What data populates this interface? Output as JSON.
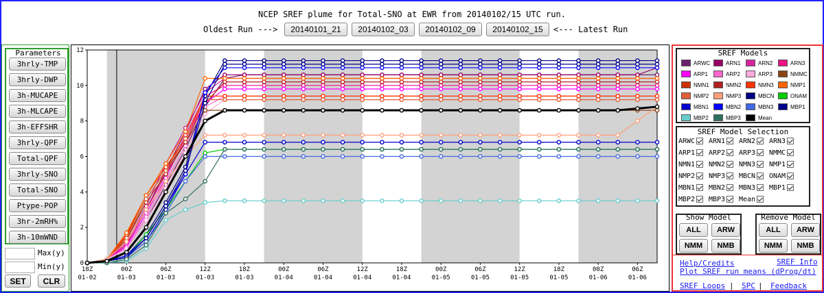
{
  "header": {
    "title": "NCEP SREF plume for Total-SNO at EWR from 20140102/15 UTC run.",
    "oldest_label": "Oldest Run --->",
    "latest_label": "<--- Latest Run",
    "runs": [
      "20140101_21",
      "20140102_03",
      "20140102_09",
      "20140102_15"
    ]
  },
  "params": {
    "legend": "Parameters",
    "buttons": [
      "3hrly-TMP",
      "3hrly-DWP",
      "3h-MUCAPE",
      "3h-MLCAPE",
      "3h-EFFSHR",
      "3hrly-QPF",
      "Total-QPF",
      "3hrly-SNO",
      "Total-SNO",
      "Ptype-POP",
      "3hr-2mRH%",
      "3h-10mWND"
    ],
    "max_label": "Max(y)",
    "min_label": "Min(y)",
    "set_label": "SET",
    "clr_label": "CLR"
  },
  "legend": {
    "title": "SREF Models",
    "models": [
      {
        "name": "ARWC",
        "color": "#6b1f6b"
      },
      {
        "name": "ARN1",
        "color": "#990066"
      },
      {
        "name": "ARN2",
        "color": "#d6249f"
      },
      {
        "name": "ARN3",
        "color": "#ee1188"
      },
      {
        "name": "ARP1",
        "color": "#ff00ff"
      },
      {
        "name": "ARP2",
        "color": "#ff66cc"
      },
      {
        "name": "ARP3",
        "color": "#ffaadd"
      },
      {
        "name": "NMMC",
        "color": "#8b4513"
      },
      {
        "name": "NMN1",
        "color": "#cc3300"
      },
      {
        "name": "NMN2",
        "color": "#b22222"
      },
      {
        "name": "NMN3",
        "color": "#ff3300"
      },
      {
        "name": "NMP1",
        "color": "#ff6600"
      },
      {
        "name": "NMP2",
        "color": "#e2603a"
      },
      {
        "name": "NMP3",
        "color": "#ffa07a"
      },
      {
        "name": "MBCN",
        "color": "#000080"
      },
      {
        "name": "ONAM",
        "color": "#00cc00"
      },
      {
        "name": "MBN1",
        "color": "#0000cd"
      },
      {
        "name": "MBN2",
        "color": "#0000ff"
      },
      {
        "name": "MBN3",
        "color": "#4169e1"
      },
      {
        "name": "MBP1",
        "color": "#00008b"
      },
      {
        "name": "MBP2",
        "color": "#66cccc"
      },
      {
        "name": "MBP3",
        "color": "#2f6f5f"
      },
      {
        "name": "Mean",
        "color": "#000000"
      }
    ]
  },
  "selection": {
    "title": "SREF Model Selection",
    "rows": [
      [
        "ARWC",
        "ARN1",
        "ARN2",
        "ARN3"
      ],
      [
        "ARP1",
        "ARP2",
        "ARP3",
        "NMMC"
      ],
      [
        "NMN1",
        "NMN2",
        "NMN3",
        "NMP1"
      ],
      [
        "NMP2",
        "NMP3",
        "MBCN",
        "ONAM"
      ],
      [
        "MBN1",
        "MBN2",
        "MBN3",
        "MBP1"
      ],
      [
        "MBP2",
        "MBP3",
        "Mean"
      ]
    ]
  },
  "show_model": {
    "title": "Show Model",
    "buttons": [
      "ALL",
      "ARW",
      "NMM",
      "NMB"
    ]
  },
  "remove_model": {
    "title": "Remove Model",
    "buttons": [
      "ALL",
      "ARW",
      "NMM",
      "NMB"
    ]
  },
  "links": {
    "help": "Help/Credits",
    "info": "SREF Info",
    "dprog": "Plot SREF run means (dProg/dt)",
    "loops": "SREF Loops",
    "spc": "SPC",
    "feedback": "Feedback",
    "sep": "|"
  },
  "chart_data": {
    "type": "line",
    "title": "",
    "xlabel": "",
    "ylabel": "",
    "ylim": [
      0,
      12
    ],
    "yticks": [
      0,
      2,
      4,
      6,
      8,
      10,
      12
    ],
    "x_index_range": [
      0,
      29
    ],
    "x_tick_labels": [
      {
        "hour": "18Z",
        "date": "01-02"
      },
      {
        "hour": "00Z",
        "date": "01-03"
      },
      {
        "hour": "06Z",
        "date": "01-03"
      },
      {
        "hour": "12Z",
        "date": "01-03"
      },
      {
        "hour": "18Z",
        "date": "01-03"
      },
      {
        "hour": "00Z",
        "date": "01-04"
      },
      {
        "hour": "06Z",
        "date": "01-04"
      },
      {
        "hour": "12Z",
        "date": "01-04"
      },
      {
        "hour": "18Z",
        "date": "01-04"
      },
      {
        "hour": "00Z",
        "date": "01-05"
      },
      {
        "hour": "06Z",
        "date": "01-05"
      },
      {
        "hour": "12Z",
        "date": "01-05"
      },
      {
        "hour": "18Z",
        "date": "01-05"
      },
      {
        "hour": "00Z",
        "date": "01-06"
      },
      {
        "hour": "06Z",
        "date": "01-06"
      }
    ],
    "shaded_bands": [
      [
        1,
        6
      ],
      [
        9,
        14
      ],
      [
        17,
        22
      ],
      [
        25,
        29
      ]
    ],
    "run_marker_index": 1.5,
    "series": [
      {
        "name": "ARWC",
        "color": "#6b1f6b",
        "values": [
          0,
          0.2,
          0.8,
          2.4,
          4.4,
          6.4,
          8.8,
          10.4,
          10.6,
          10.6,
          10.6,
          10.6,
          10.6,
          10.6,
          10.6,
          10.6,
          10.6,
          10.6,
          10.6,
          10.6,
          10.6,
          10.6,
          10.6,
          10.6,
          10.6,
          10.6,
          10.6,
          10.6,
          10.6,
          10.6
        ]
      },
      {
        "name": "ARN1",
        "color": "#990066",
        "values": [
          0,
          0.2,
          1.0,
          3.0,
          5.2,
          7.4,
          9.8,
          10.6,
          10.6,
          10.6,
          10.6,
          10.6,
          10.6,
          10.6,
          10.6,
          10.6,
          10.6,
          10.6,
          10.6,
          10.6,
          10.6,
          10.6,
          10.6,
          10.6,
          10.6,
          10.6,
          10.6,
          10.6,
          10.6,
          11.0
        ]
      },
      {
        "name": "ARN2",
        "color": "#d6249f",
        "values": [
          0,
          0.2,
          1.1,
          3.2,
          5.6,
          7.6,
          9.6,
          10.4,
          10.4,
          10.4,
          10.4,
          10.4,
          10.4,
          10.4,
          10.4,
          10.4,
          10.4,
          10.4,
          10.4,
          10.4,
          10.4,
          10.4,
          10.4,
          10.4,
          10.4,
          10.4,
          10.4,
          10.4,
          10.4,
          10.4
        ]
      },
      {
        "name": "ARN3",
        "color": "#ee1188",
        "values": [
          0,
          0.2,
          1.0,
          3.0,
          5.0,
          7.2,
          9.4,
          10.0,
          10.0,
          10.0,
          10.0,
          10.0,
          10.0,
          10.0,
          10.0,
          10.0,
          10.0,
          10.0,
          10.0,
          10.0,
          10.0,
          10.0,
          10.0,
          10.0,
          10.0,
          10.0,
          10.0,
          10.0,
          10.0,
          10.0
        ]
      },
      {
        "name": "ARP1",
        "color": "#ff00ff",
        "values": [
          0,
          0.2,
          0.9,
          2.8,
          4.8,
          7.0,
          9.0,
          9.8,
          9.8,
          9.8,
          9.8,
          9.8,
          9.8,
          9.8,
          9.8,
          9.8,
          9.8,
          9.8,
          9.8,
          9.8,
          9.8,
          9.8,
          9.8,
          9.8,
          9.8,
          9.8,
          9.8,
          9.8,
          9.8,
          9.8
        ]
      },
      {
        "name": "ARP2",
        "color": "#ff66cc",
        "values": [
          0,
          0.2,
          0.8,
          2.6,
          4.6,
          6.6,
          8.8,
          9.4,
          9.4,
          9.4,
          9.4,
          9.4,
          9.4,
          9.4,
          9.4,
          9.4,
          9.4,
          9.4,
          9.4,
          9.4,
          9.4,
          9.4,
          9.4,
          9.4,
          9.4,
          9.4,
          9.4,
          9.4,
          9.4,
          9.4
        ]
      },
      {
        "name": "ARP3",
        "color": "#ffaadd",
        "values": [
          0,
          0.2,
          0.8,
          2.4,
          4.2,
          6.2,
          8.4,
          9.2,
          9.2,
          9.2,
          9.2,
          9.2,
          9.2,
          9.2,
          9.2,
          9.2,
          9.2,
          9.2,
          9.2,
          9.2,
          9.2,
          9.2,
          9.2,
          9.2,
          9.2,
          9.2,
          9.2,
          9.2,
          9.2,
          9.2
        ]
      },
      {
        "name": "NMMC",
        "color": "#8b4513",
        "values": [
          0,
          0.2,
          1.3,
          3.6,
          5.2,
          6.8,
          8.6,
          8.6,
          8.6,
          8.6,
          8.6,
          8.6,
          8.6,
          8.6,
          8.6,
          8.6,
          8.6,
          8.6,
          8.6,
          8.6,
          8.6,
          8.6,
          8.6,
          8.6,
          8.6,
          8.6,
          8.6,
          8.6,
          8.6,
          8.6
        ]
      },
      {
        "name": "NMN1",
        "color": "#cc3300",
        "values": [
          0,
          0.2,
          1.5,
          3.8,
          5.4,
          7.0,
          9.2,
          9.2,
          9.2,
          9.2,
          9.2,
          9.2,
          9.2,
          9.2,
          9.2,
          9.2,
          9.2,
          9.2,
          9.2,
          9.2,
          9.2,
          9.2,
          9.2,
          9.2,
          9.2,
          9.2,
          9.2,
          9.2,
          9.2,
          9.2
        ]
      },
      {
        "name": "NMN2",
        "color": "#b22222",
        "values": [
          0,
          0.2,
          1.3,
          3.4,
          5.0,
          6.8,
          9.0,
          10.2,
          10.2,
          10.2,
          10.2,
          10.2,
          10.2,
          10.2,
          10.2,
          10.2,
          10.2,
          10.2,
          10.2,
          10.2,
          10.2,
          10.2,
          10.2,
          10.2,
          10.2,
          10.2,
          10.2,
          10.2,
          10.2,
          10.2
        ]
      },
      {
        "name": "NMN3",
        "color": "#ff3300",
        "values": [
          0,
          0.2,
          1.6,
          3.8,
          5.4,
          7.0,
          9.4,
          9.4,
          9.4,
          9.4,
          9.4,
          9.4,
          9.4,
          9.4,
          9.4,
          9.4,
          9.4,
          9.4,
          9.4,
          9.4,
          9.4,
          9.4,
          9.4,
          9.4,
          9.4,
          9.4,
          9.4,
          9.4,
          9.4,
          9.4
        ]
      },
      {
        "name": "NMP1",
        "color": "#ff6600",
        "values": [
          0,
          0.2,
          1.7,
          3.8,
          5.6,
          7.4,
          10.4,
          10.4,
          10.4,
          10.4,
          10.4,
          10.4,
          10.4,
          10.4,
          10.4,
          10.4,
          10.4,
          10.4,
          10.4,
          10.4,
          10.4,
          10.4,
          10.4,
          10.4,
          10.4,
          10.4,
          10.4,
          10.4,
          10.4,
          10.4
        ]
      },
      {
        "name": "NMP2",
        "color": "#e2603a",
        "values": [
          0,
          0.2,
          1.4,
          3.6,
          5.2,
          7.0,
          9.2,
          9.2,
          9.2,
          9.2,
          9.2,
          9.2,
          9.2,
          9.2,
          9.2,
          9.2,
          9.2,
          9.2,
          9.2,
          9.2,
          9.2,
          9.2,
          9.2,
          9.2,
          9.2,
          9.2,
          9.2,
          9.2,
          9.2,
          9.2
        ]
      },
      {
        "name": "NMP3",
        "color": "#ffa07a",
        "values": [
          0,
          0.2,
          1.2,
          3.0,
          4.6,
          6.0,
          7.2,
          7.2,
          7.2,
          7.2,
          7.2,
          7.2,
          7.2,
          7.2,
          7.2,
          7.2,
          7.2,
          7.2,
          7.2,
          7.2,
          7.2,
          7.2,
          7.2,
          7.2,
          7.2,
          7.2,
          7.2,
          7.2,
          8.0,
          8.8
        ]
      },
      {
        "name": "MBCN",
        "color": "#000080",
        "values": [
          0,
          0.1,
          0.4,
          1.6,
          3.4,
          5.4,
          9.4,
          11.4,
          11.4,
          11.4,
          11.4,
          11.4,
          11.4,
          11.4,
          11.4,
          11.4,
          11.4,
          11.4,
          11.4,
          11.4,
          11.4,
          11.4,
          11.4,
          11.4,
          11.4,
          11.4,
          11.4,
          11.4,
          11.4,
          11.4
        ]
      },
      {
        "name": "ONAM",
        "color": "#00cc00",
        "values": [
          0,
          0.1,
          0.3,
          1.6,
          3.0,
          4.6,
          6.2,
          6.4,
          6.4,
          6.4,
          6.4,
          6.4,
          6.4,
          6.4,
          6.4,
          6.4,
          6.4,
          6.4,
          6.4,
          6.4,
          6.4,
          6.4,
          6.4,
          6.4,
          6.4,
          6.4,
          6.4,
          6.4,
          6.4,
          6.4
        ]
      },
      {
        "name": "MBN1",
        "color": "#0000cd",
        "values": [
          0,
          0.1,
          0.3,
          1.2,
          3.0,
          5.0,
          6.8,
          6.8,
          6.8,
          6.8,
          6.8,
          6.8,
          6.8,
          6.8,
          6.8,
          6.8,
          6.8,
          6.8,
          6.8,
          6.8,
          6.8,
          6.8,
          6.8,
          6.8,
          6.8,
          6.8,
          6.8,
          6.8,
          6.8,
          6.8
        ]
      },
      {
        "name": "MBN2",
        "color": "#0000ff",
        "values": [
          0,
          0.1,
          0.4,
          1.4,
          3.2,
          5.0,
          9.6,
          11.0,
          11.0,
          11.0,
          11.0,
          11.0,
          11.0,
          11.0,
          11.0,
          11.0,
          11.0,
          11.0,
          11.0,
          11.0,
          11.0,
          11.0,
          11.0,
          11.0,
          11.0,
          11.0,
          11.0,
          11.0,
          11.0,
          11.0
        ]
      },
      {
        "name": "MBN3",
        "color": "#4169e1",
        "values": [
          0,
          0.1,
          0.3,
          1.2,
          2.8,
          4.6,
          6.0,
          6.0,
          6.0,
          6.0,
          6.0,
          6.0,
          6.0,
          6.0,
          6.0,
          6.0,
          6.0,
          6.0,
          6.0,
          6.0,
          6.0,
          6.0,
          6.0,
          6.0,
          6.0,
          6.0,
          6.0,
          6.0,
          6.0,
          6.0
        ]
      },
      {
        "name": "MBP1",
        "color": "#00008b",
        "values": [
          0,
          0.1,
          0.3,
          1.4,
          3.2,
          5.2,
          9.0,
          11.2,
          11.2,
          11.2,
          11.2,
          11.2,
          11.2,
          11.2,
          11.2,
          11.2,
          11.2,
          11.2,
          11.2,
          11.2,
          11.2,
          11.2,
          11.2,
          11.2,
          11.2,
          11.2,
          11.2,
          11.2,
          11.2,
          11.2
        ]
      },
      {
        "name": "MBP2",
        "color": "#66cccc",
        "values": [
          0,
          0.0,
          0.1,
          0.8,
          2.4,
          3.0,
          3.4,
          3.5,
          3.5,
          3.5,
          3.5,
          3.5,
          3.5,
          3.5,
          3.5,
          3.5,
          3.5,
          3.5,
          3.5,
          3.5,
          3.5,
          3.5,
          3.5,
          3.5,
          3.5,
          3.5,
          3.5,
          3.5,
          3.5,
          3.5
        ]
      },
      {
        "name": "MBP3",
        "color": "#2f6f5f",
        "values": [
          0,
          0.0,
          0.2,
          1.0,
          2.8,
          3.6,
          4.6,
          6.4,
          6.4,
          6.4,
          6.4,
          6.4,
          6.4,
          6.4,
          6.4,
          6.4,
          6.4,
          6.4,
          6.4,
          6.4,
          6.4,
          6.4,
          6.4,
          6.4,
          6.4,
          6.4,
          6.4,
          6.4,
          6.4,
          6.4
        ]
      },
      {
        "name": "Mean",
        "color": "#000000",
        "values": [
          0,
          0.1,
          0.6,
          2.0,
          4.0,
          6.0,
          8.0,
          8.6,
          8.6,
          8.6,
          8.6,
          8.6,
          8.6,
          8.6,
          8.6,
          8.6,
          8.6,
          8.6,
          8.6,
          8.6,
          8.6,
          8.6,
          8.6,
          8.6,
          8.6,
          8.6,
          8.6,
          8.6,
          8.7,
          8.8
        ]
      }
    ]
  }
}
